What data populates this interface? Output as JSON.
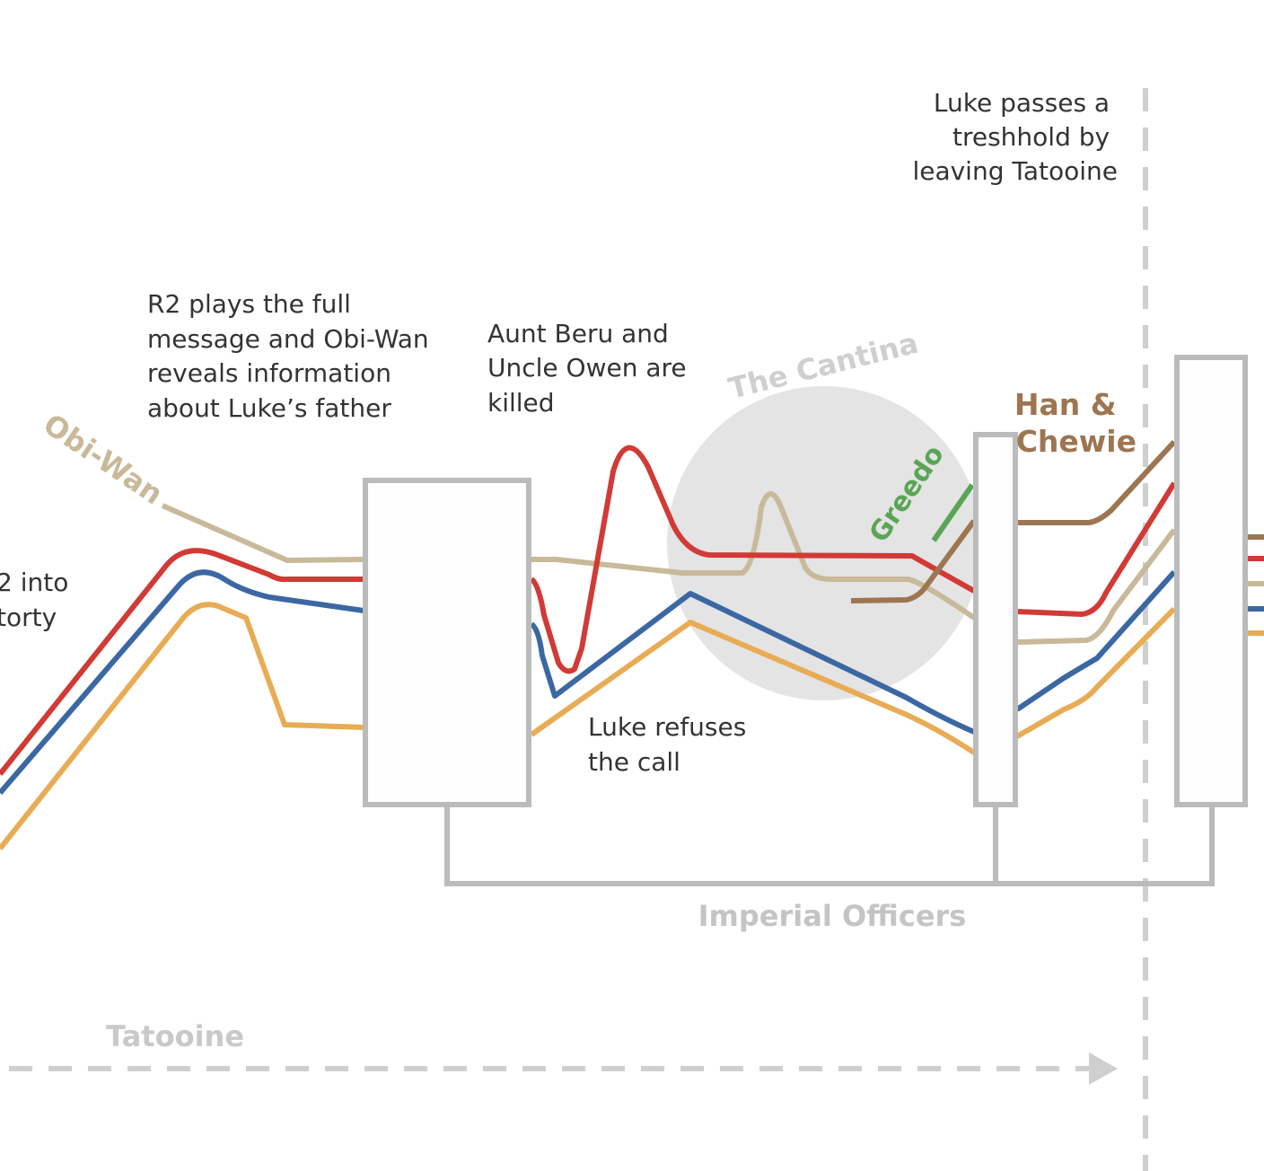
{
  "annotations": {
    "r2_into_line1": "2 into",
    "r2_into_line2": "torty",
    "r2_message": [
      "R2 plays the full",
      "message and Obi-Wan",
      "reveals information",
      "about Luke’s father"
    ],
    "aunt_uncle": [
      "Aunt Beru and",
      "Uncle Owen are",
      "killed"
    ],
    "refuses": [
      "Luke refuses",
      "the call"
    ],
    "threshold": [
      "Luke passes a",
      "treshhold by",
      "leaving Tatooine"
    ]
  },
  "labels": {
    "obi_wan": "Obi-Wan",
    "cantina": "The Cantina",
    "greedo": "Greedo",
    "han_chewie_line1": "Han &",
    "han_chewie_line2": "Chewie",
    "imperial_officers": "Imperial Officers",
    "tatooine": "Tatooine"
  },
  "colors": {
    "luke": "#d13a36",
    "leia_blue": "#3b68a2",
    "orange": "#e8ac55",
    "obi_wan": "#c8b99a",
    "han": "#9d7550",
    "greedo": "#5aa555",
    "box": "#bbbbbb",
    "cantina_circle": "#e4e4e4",
    "label_gray": "#c4c4c4",
    "text": "#333333"
  }
}
